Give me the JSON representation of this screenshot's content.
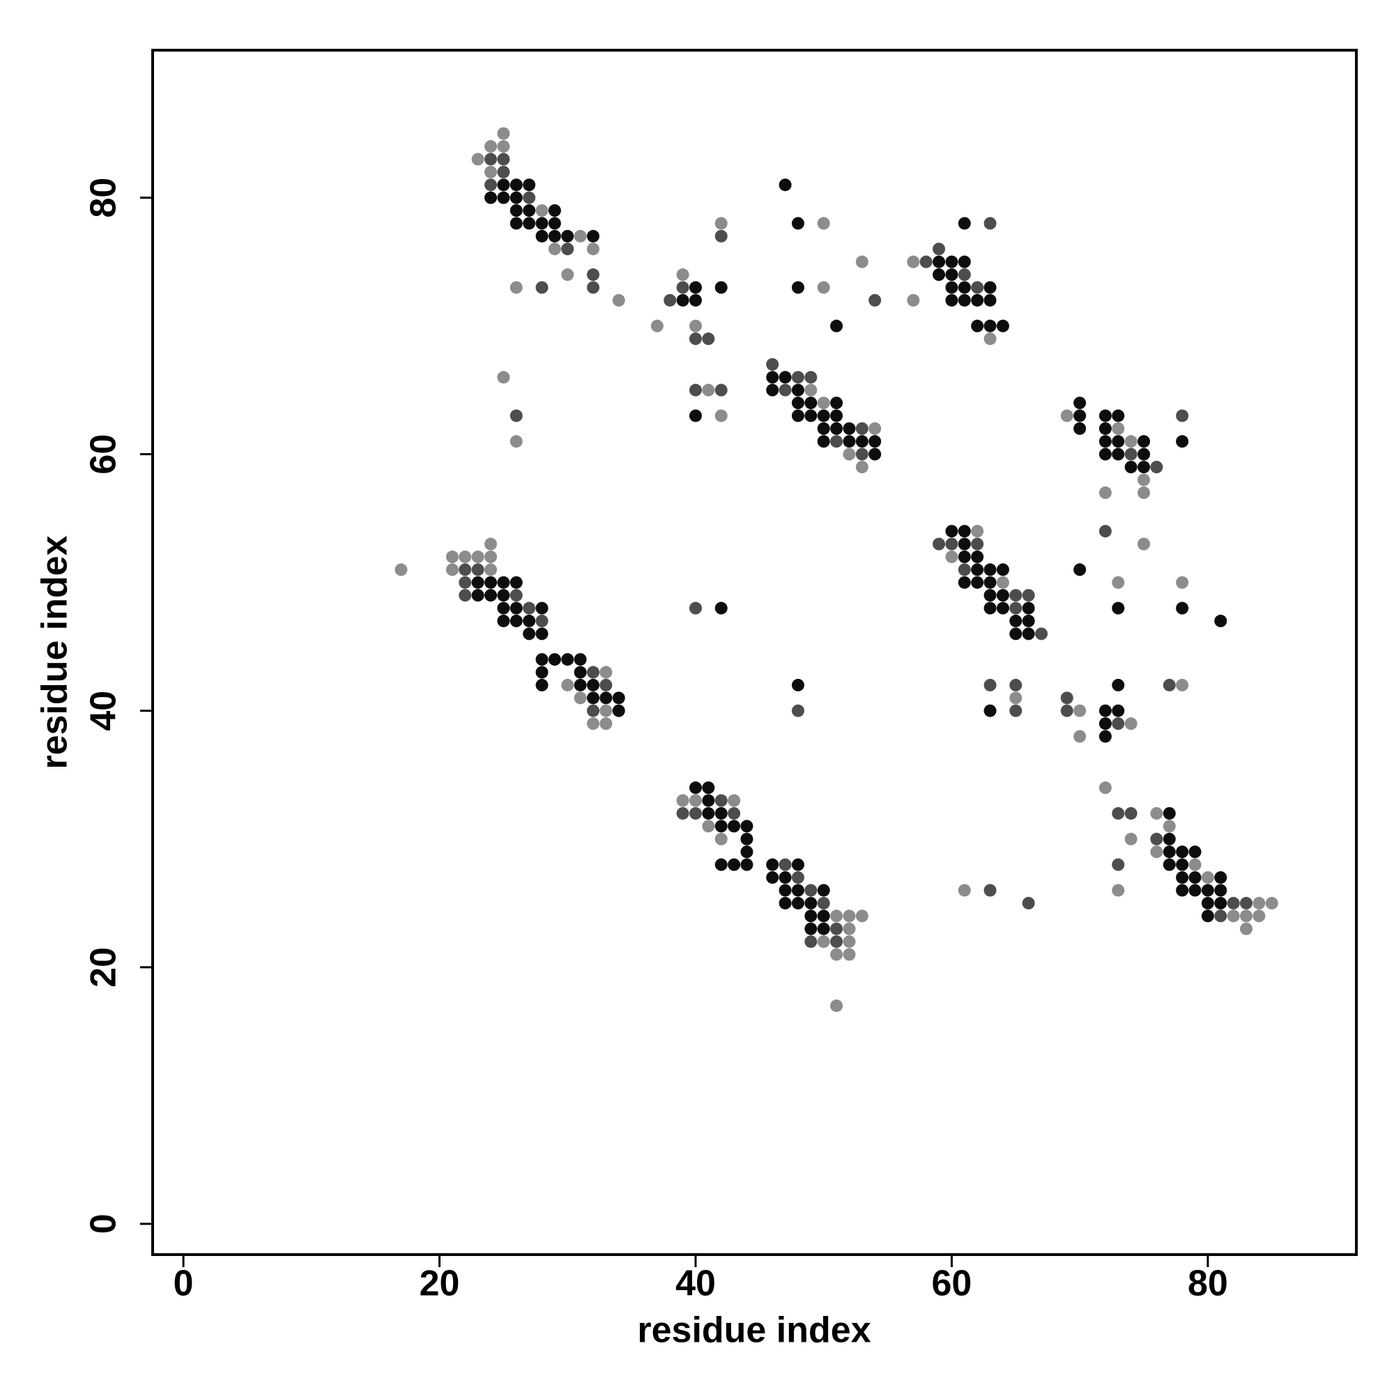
{
  "chart_data": {
    "type": "scatter",
    "xlabel": "residue index",
    "ylabel": "residue index",
    "xlim": [
      -2.4,
      91.6
    ],
    "ylim": [
      -2.4,
      91.5
    ],
    "xticks": [
      0,
      20,
      40,
      60,
      80
    ],
    "yticks": [
      0,
      20,
      40,
      60,
      80
    ],
    "series": [
      {
        "color": "#8c8c8c",
        "x": [
          25,
          24,
          25,
          23,
          24,
          28,
          31,
          29,
          32,
          30,
          26,
          34,
          25,
          26,
          39,
          37,
          40,
          42,
          41,
          42,
          50,
          50,
          53,
          49,
          50,
          54,
          52,
          53,
          57,
          57,
          63,
          69,
          73,
          74,
          75,
          72,
          75,
          17,
          24,
          21,
          22,
          23,
          24,
          21,
          24,
          33,
          30,
          31,
          33,
          32,
          33,
          62,
          60,
          64,
          75,
          73,
          78,
          65,
          70,
          70,
          74,
          78,
          39,
          40,
          43,
          41,
          42,
          51,
          52,
          53,
          52,
          50,
          52,
          51,
          52,
          51,
          61,
          72,
          76,
          77,
          74,
          76,
          79,
          80,
          73,
          84,
          85,
          82,
          83,
          84,
          83
        ],
        "y": [
          85,
          84,
          84,
          83,
          82,
          79,
          77,
          76,
          76,
          74,
          73,
          72,
          66,
          61,
          74,
          70,
          70,
          78,
          65,
          63,
          78,
          73,
          75,
          65,
          64,
          62,
          60,
          59,
          75,
          72,
          69,
          63,
          62,
          61,
          58,
          57,
          57,
          51,
          53,
          52,
          52,
          52,
          52,
          51,
          51,
          43,
          42,
          41,
          40,
          39,
          39,
          54,
          52,
          50,
          53,
          50,
          50,
          41,
          40,
          38,
          39,
          42,
          33,
          33,
          33,
          31,
          30,
          24,
          24,
          24,
          23,
          22,
          22,
          21,
          21,
          17,
          26,
          34,
          32,
          31,
          30,
          29,
          28,
          27,
          26,
          25,
          25,
          24,
          24,
          24,
          23
        ]
      },
      {
        "color": "#4d4d4d",
        "x": [
          24,
          25,
          25,
          24,
          27,
          30,
          32,
          28,
          32,
          26,
          39,
          38,
          40,
          41,
          42,
          40,
          42,
          54,
          46,
          48,
          49,
          47,
          53,
          51,
          53,
          59,
          58,
          61,
          62,
          63,
          78,
          74,
          76,
          22,
          23,
          22,
          22,
          26,
          27,
          28,
          32,
          33,
          32,
          40,
          48,
          59,
          60,
          62,
          61,
          65,
          66,
          65,
          67,
          72,
          63,
          65,
          65,
          69,
          69,
          73,
          77,
          42,
          39,
          40,
          43,
          47,
          48,
          49,
          50,
          51,
          49,
          51,
          63,
          66,
          73,
          74,
          76,
          73,
          82,
          83,
          81
        ],
        "y": [
          83,
          83,
          82,
          81,
          80,
          76,
          74,
          73,
          73,
          63,
          73,
          72,
          69,
          69,
          77,
          65,
          65,
          72,
          67,
          66,
          66,
          65,
          62,
          61,
          60,
          76,
          75,
          74,
          73,
          78,
          63,
          60,
          59,
          51,
          51,
          50,
          49,
          49,
          48,
          47,
          43,
          42,
          40,
          48,
          40,
          53,
          53,
          53,
          51,
          49,
          49,
          48,
          46,
          54,
          42,
          42,
          40,
          41,
          40,
          39,
          42,
          33,
          32,
          32,
          32,
          28,
          27,
          26,
          25,
          23,
          22,
          22,
          26,
          25,
          32,
          32,
          30,
          28,
          25,
          25,
          24
        ]
      },
      {
        "color": "#0d0d0d",
        "x": [
          25,
          26,
          27,
          24,
          25,
          26,
          26,
          27,
          29,
          26,
          27,
          28,
          29,
          28,
          29,
          30,
          32,
          40,
          42,
          39,
          40,
          40,
          47,
          48,
          48,
          51,
          46,
          47,
          46,
          48,
          48,
          49,
          51,
          48,
          49,
          50,
          51,
          50,
          51,
          52,
          50,
          52,
          53,
          54,
          54,
          59,
          60,
          61,
          59,
          60,
          60,
          61,
          63,
          60,
          61,
          62,
          63,
          62,
          63,
          64,
          61,
          70,
          70,
          72,
          73,
          70,
          72,
          72,
          73,
          75,
          78,
          72,
          73,
          75,
          74,
          75,
          23,
          24,
          25,
          26,
          23,
          24,
          25,
          25,
          26,
          28,
          25,
          26,
          27,
          27,
          28,
          28,
          29,
          30,
          31,
          28,
          31,
          28,
          31,
          32,
          32,
          33,
          34,
          34,
          42,
          48,
          60,
          61,
          61,
          61,
          62,
          62,
          63,
          64,
          61,
          62,
          63,
          63,
          64,
          63,
          64,
          66,
          65,
          66,
          65,
          66,
          70,
          73,
          78,
          81,
          63,
          72,
          73,
          72,
          72,
          73,
          40,
          41,
          41,
          41,
          42,
          42,
          43,
          44,
          44,
          44,
          42,
          43,
          44,
          46,
          48,
          46,
          47,
          47,
          48,
          50,
          47,
          48,
          49,
          49,
          50,
          49,
          50,
          77,
          77,
          77,
          78,
          79,
          77,
          78,
          78,
          79,
          81,
          78,
          79,
          80,
          81,
          80,
          81,
          80
        ],
        "y": [
          81,
          81,
          81,
          80,
          80,
          80,
          79,
          79,
          79,
          78,
          78,
          78,
          78,
          77,
          77,
          77,
          77,
          73,
          73,
          72,
          72,
          63,
          81,
          78,
          73,
          70,
          66,
          66,
          65,
          65,
          64,
          64,
          64,
          63,
          63,
          63,
          63,
          62,
          62,
          62,
          61,
          61,
          61,
          61,
          60,
          75,
          75,
          75,
          74,
          74,
          73,
          73,
          73,
          72,
          72,
          72,
          72,
          70,
          70,
          70,
          78,
          64,
          63,
          63,
          63,
          62,
          62,
          61,
          61,
          61,
          61,
          60,
          60,
          60,
          59,
          59,
          50,
          50,
          50,
          50,
          49,
          49,
          49,
          48,
          48,
          48,
          47,
          47,
          47,
          46,
          46,
          44,
          44,
          44,
          44,
          43,
          43,
          42,
          42,
          42,
          41,
          41,
          41,
          40,
          48,
          42,
          54,
          54,
          53,
          52,
          52,
          51,
          51,
          51,
          50,
          50,
          50,
          49,
          49,
          48,
          48,
          48,
          47,
          47,
          46,
          46,
          51,
          48,
          48,
          47,
          40,
          40,
          40,
          39,
          38,
          42,
          34,
          34,
          33,
          32,
          32,
          31,
          31,
          31,
          30,
          29,
          28,
          28,
          28,
          28,
          28,
          27,
          27,
          26,
          26,
          26,
          25,
          25,
          25,
          24,
          24,
          23,
          23,
          32,
          30,
          29,
          29,
          29,
          28,
          28,
          27,
          27,
          27,
          26,
          26,
          26,
          26,
          25,
          25,
          24
        ]
      }
    ]
  }
}
